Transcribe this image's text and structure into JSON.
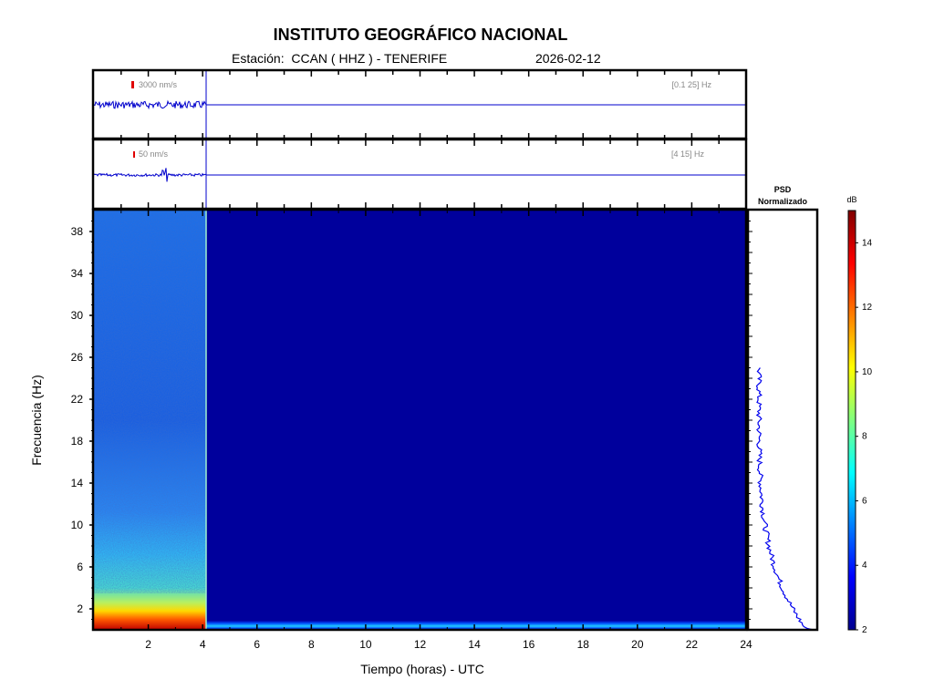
{
  "header": {
    "title": "INSTITUTO GEOGRÁFICO NACIONAL",
    "station_line": "Estación:  CCAN ( HHZ ) - TENERIFE",
    "date": "2026-02-12"
  },
  "chart_data": [
    {
      "type": "line",
      "panel": "seismogram-broadband",
      "scale_label": "3000 nm/s",
      "band_label": "[0.1 25] Hz",
      "xlim": [
        0,
        24
      ],
      "data_end_hour": 4.15,
      "scale_color": "#e00000",
      "trace_color": "#0000cc"
    },
    {
      "type": "line",
      "panel": "seismogram-highpass",
      "scale_label": "50 nm/s",
      "band_label": "[4 15] Hz",
      "xlim": [
        0,
        24
      ],
      "data_end_hour": 4.15,
      "events_hours": [
        2.6
      ],
      "scale_color": "#e00000",
      "trace_color": "#0000cc"
    },
    {
      "type": "heatmap",
      "panel": "spectrogram",
      "xlabel": "Tiempo (horas) - UTC",
      "ylabel": "Frecuencia  (Hz)",
      "xlim": [
        0,
        24
      ],
      "ylim": [
        0,
        40
      ],
      "xticks": [
        2,
        4,
        6,
        8,
        10,
        12,
        14,
        16,
        18,
        20,
        22,
        24
      ],
      "yticks": [
        2,
        6,
        10,
        14,
        18,
        22,
        26,
        30,
        34,
        38
      ],
      "data_end_hour": 4.15,
      "colormap": "jet"
    },
    {
      "type": "line",
      "panel": "psd",
      "title": "PSD\nNormalizado",
      "title_lines": [
        "PSD",
        "Normalizado"
      ],
      "max_frequency_hz": 25,
      "line_color": "#0000ee"
    },
    {
      "type": "colorbar",
      "panel": "colorbar",
      "label": "dB",
      "ticks": [
        2,
        4,
        6,
        8,
        10,
        12,
        14
      ],
      "range": [
        2,
        15
      ],
      "colormap": "jet"
    }
  ]
}
